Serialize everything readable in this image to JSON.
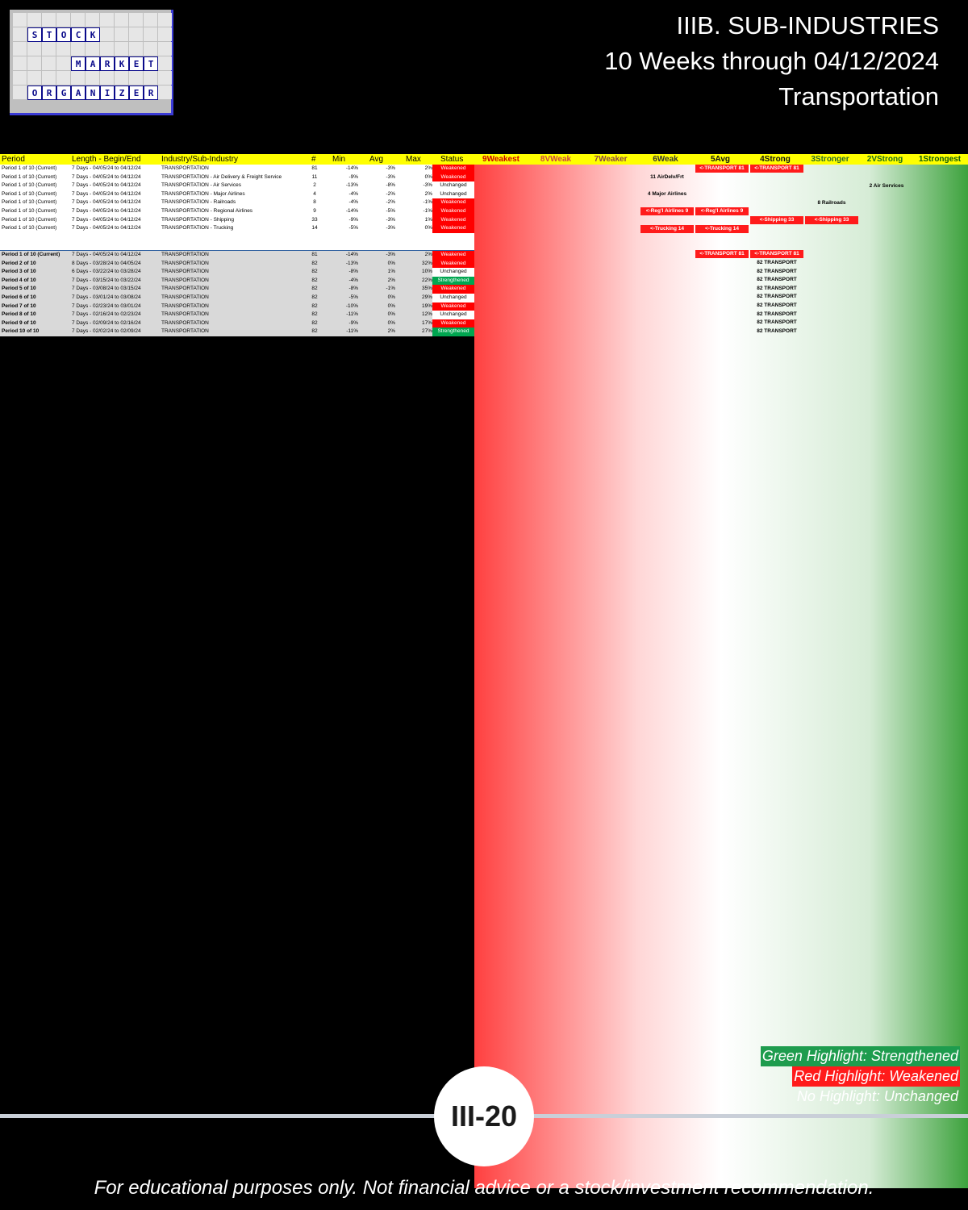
{
  "brand": {
    "logo_words": [
      "STOCK",
      "MARKET",
      "ORGANIZER"
    ]
  },
  "header": {
    "line1": "IIIB. SUB-INDUSTRIES",
    "line2": "10 Weeks through 04/12/2024",
    "line3": "Transportation"
  },
  "table": {
    "columns": [
      "Period",
      "Length - Begin/End",
      "Industry/Sub-Industry",
      "#",
      "Min",
      "Avg",
      "Max",
      "Status"
    ],
    "levels": [
      "9Weakest",
      "8VWeak",
      "7Weaker",
      "6Weak",
      "5Avg",
      "4Strong",
      "3Stronger",
      "2VStrong",
      "1Strongest"
    ],
    "summary_rows": [
      {
        "period": "Period 1 of 10 (Current)",
        "len": "7 Days - 04/05/24 to 04/12/24",
        "ind": "TRANSPORTATION",
        "num": "81",
        "min": "-14%",
        "avg": "-3%",
        "max": "2%",
        "status": "Weakened"
      },
      {
        "period": "Period 1 of 10 (Current)",
        "len": "7 Days - 04/05/24 to 04/12/24",
        "ind": "TRANSPORTATION - Air Delivery & Freight Service",
        "num": "11",
        "min": "-9%",
        "avg": "-3%",
        "max": "0%",
        "status": "Weakened"
      },
      {
        "period": "Period 1 of 10 (Current)",
        "len": "7 Days - 04/05/24 to 04/12/24",
        "ind": "TRANSPORTATION - Air Services",
        "num": "2",
        "min": "-13%",
        "avg": "-8%",
        "max": "-3%",
        "status": "Unchanged"
      },
      {
        "period": "Period 1 of 10 (Current)",
        "len": "7 Days - 04/05/24 to 04/12/24",
        "ind": "TRANSPORTATION - Major Airlines",
        "num": "4",
        "min": "-4%",
        "avg": "-2%",
        "max": "2%",
        "status": "Unchanged"
      },
      {
        "period": "Period 1 of 10 (Current)",
        "len": "7 Days - 04/05/24 to 04/12/24",
        "ind": "TRANSPORTATION - Railroads",
        "num": "8",
        "min": "-4%",
        "avg": "-2%",
        "max": "-1%",
        "status": "Weakened"
      },
      {
        "period": "Period 1 of 10 (Current)",
        "len": "7 Days - 04/05/24 to 04/12/24",
        "ind": "TRANSPORTATION - Regional Airlines",
        "num": "9",
        "min": "-14%",
        "avg": "-5%",
        "max": "-1%",
        "status": "Weakened"
      },
      {
        "period": "Period 1 of 10 (Current)",
        "len": "7 Days - 04/05/24 to 04/12/24",
        "ind": "TRANSPORTATION - Shipping",
        "num": "33",
        "min": "-9%",
        "avg": "-3%",
        "max": "1%",
        "status": "Weakened"
      },
      {
        "period": "Period 1 of 10 (Current)",
        "len": "7 Days - 04/05/24 to 04/12/24",
        "ind": "TRANSPORTATION - Trucking",
        "num": "14",
        "min": "-5%",
        "avg": "-3%",
        "max": "0%",
        "status": "Weakened"
      }
    ],
    "transport_rows": [
      {
        "period": "Period 1 of 10 (Current)",
        "len": "7 Days - 04/05/24 to 04/12/24",
        "ind": "TRANSPORTATION",
        "num": "81",
        "min": "-14%",
        "avg": "-3%",
        "max": "2%",
        "status": "Weakened"
      },
      {
        "period": "Period 2 of 10",
        "len": "8 Days - 03/28/24 to 04/05/24",
        "ind": "TRANSPORTATION",
        "num": "82",
        "min": "-13%",
        "avg": "0%",
        "max": "32%",
        "status": "Weakened"
      },
      {
        "period": "Period 3 of 10",
        "len": "6 Days - 03/22/24 to 03/28/24",
        "ind": "TRANSPORTATION",
        "num": "82",
        "min": "-8%",
        "avg": "1%",
        "max": "10%",
        "status": "Unchanged"
      },
      {
        "period": "Period 4 of 10",
        "len": "7 Days - 03/15/24 to 03/22/24",
        "ind": "TRANSPORTATION",
        "num": "82",
        "min": "-4%",
        "avg": "2%",
        "max": "22%",
        "status": "Strengthened"
      },
      {
        "period": "Period 5 of 10",
        "len": "7 Days - 03/08/24 to 03/15/24",
        "ind": "TRANSPORTATION",
        "num": "82",
        "min": "-8%",
        "avg": "-1%",
        "max": "35%",
        "status": "Weakened"
      },
      {
        "period": "Period 6 of 10",
        "len": "7 Days - 03/01/24 to 03/08/24",
        "ind": "TRANSPORTATION",
        "num": "82",
        "min": "-5%",
        "avg": "0%",
        "max": "29%",
        "status": "Unchanged"
      },
      {
        "period": "Period 7 of 10",
        "len": "7 Days - 02/23/24 to 03/01/24",
        "ind": "TRANSPORTATION",
        "num": "82",
        "min": "-10%",
        "avg": "0%",
        "max": "19%",
        "status": "Weakened"
      },
      {
        "period": "Period 8 of 10",
        "len": "7 Days - 02/16/24 to 02/23/24",
        "ind": "TRANSPORTATION",
        "num": "82",
        "min": "-11%",
        "avg": "0%",
        "max": "12%",
        "status": "Unchanged"
      },
      {
        "period": "Period 9 of 10",
        "len": "7 Days - 02/09/24 to 02/16/24",
        "ind": "TRANSPORTATION",
        "num": "82",
        "min": "-9%",
        "avg": "0%",
        "max": "17%",
        "status": "Weakened"
      },
      {
        "period": "Period 10 of 10",
        "len": "7 Days - 02/02/24 to 02/09/24",
        "ind": "TRANSPORTATION",
        "num": "82",
        "min": "-11%",
        "avg": "2%",
        "max": "27%",
        "status": "Strengthened"
      }
    ],
    "chips": [
      {
        "text": "11 AirDelv/Frt",
        "row": 1,
        "col": 3,
        "style": "plain"
      },
      {
        "text": "2 Air Services",
        "row": 2,
        "col": 7,
        "style": "plain"
      },
      {
        "text": "4 Major Airlines",
        "row": 3,
        "col": 3,
        "style": "plain"
      },
      {
        "text": "8 Railroads",
        "row": 4,
        "col": 6,
        "style": "plain"
      },
      {
        "text": "<-Reg'l Airlines 9",
        "row": 5,
        "col": 3,
        "style": "red"
      },
      {
        "text": "<-Reg'l Airlines 9",
        "row": 5,
        "col": 4,
        "style": "red"
      },
      {
        "text": "<-Shipping 33",
        "row": 6,
        "col": 5,
        "style": "red"
      },
      {
        "text": "<-Shipping 33",
        "row": 6,
        "col": 6,
        "style": "red"
      },
      {
        "text": "<-Trucking 14",
        "row": 7,
        "col": 3,
        "style": "red"
      },
      {
        "text": "<-Trucking 14",
        "row": 7,
        "col": 4,
        "style": "red"
      },
      {
        "text": "<-TRANSPORT 81",
        "row": 0,
        "col": 4,
        "style": "red"
      },
      {
        "text": "<-TRANSPORT 81",
        "row": 0,
        "col": 5,
        "style": "red"
      },
      {
        "text": "<-TRANSPORT 81",
        "row": 10,
        "col": 4,
        "style": "red"
      },
      {
        "text": "<-TRANSPORT 81",
        "row": 10,
        "col": 5,
        "style": "red"
      },
      {
        "text": "82 TRANSPORT",
        "row": 11,
        "col": 5,
        "style": "plain"
      },
      {
        "text": "82 TRANSPORT",
        "row": 12,
        "col": 5,
        "style": "plain"
      },
      {
        "text": "82 TRANSPORT",
        "row": 13,
        "col": 5,
        "style": "plain"
      },
      {
        "text": "82 TRANSPORT",
        "row": 14,
        "col": 5,
        "style": "plain"
      },
      {
        "text": "82 TRANSPORT",
        "row": 15,
        "col": 5,
        "style": "plain"
      },
      {
        "text": "82 TRANSPORT",
        "row": 16,
        "col": 5,
        "style": "plain"
      },
      {
        "text": "82 TRANSPORT",
        "row": 17,
        "col": 5,
        "style": "plain"
      },
      {
        "text": "82 TRANSPORT",
        "row": 18,
        "col": 5,
        "style": "plain"
      },
      {
        "text": "82 TRANSPORT",
        "row": 19,
        "col": 5,
        "style": "plain"
      }
    ]
  },
  "legend": {
    "green": "Green Highlight: Strengthened",
    "red": "Red Highlight: Weakened",
    "none": "No Highlight: Unchanged"
  },
  "page_number": "III-20",
  "disclaimer": "For educational purposes only. Not financial advice or a stock/investment recommendation."
}
